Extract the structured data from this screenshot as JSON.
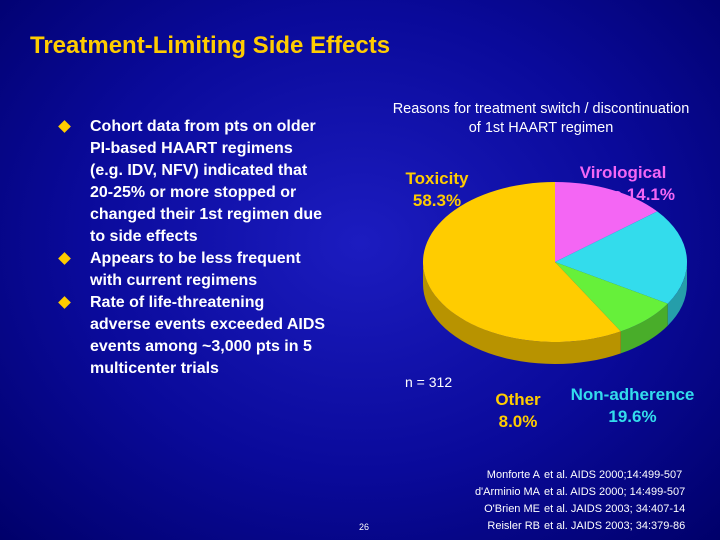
{
  "slide": {
    "title": "Treatment-Limiting Side Effects",
    "bullets": [
      "Cohort data from pts on older PI-based HAART regimens (e.g. IDV, NFV) indicated that 20-25% or more stopped or changed their 1st regimen due to side effects",
      "Appears to be less frequent with current regimens",
      "Rate of life-threatening adverse events exceeded AIDS events among ~3,000 pts in 5 multicenter trials"
    ],
    "references": {
      "authors": [
        "Monforte A",
        "d'Arminio MA",
        "O'Brien ME",
        "Reisler RB"
      ],
      "citations": [
        "et al. AIDS 2000;14:499-507",
        "et al. AIDS 2000; 14:499-507",
        "et al. JAIDS 2003; 34:407-14",
        "et al. JAIDS 2003; 34:379-86"
      ]
    },
    "page_number": "26"
  },
  "chart_data": {
    "type": "pie",
    "title": "Reasons for treatment switch / discontinuation of 1st HAART regimen",
    "categories": [
      "Virological failure",
      "Non-adherence",
      "Other",
      "Toxicity"
    ],
    "values": [
      14.1,
      19.6,
      8.0,
      58.3
    ],
    "value_labels": [
      "14.1%",
      "19.6%",
      "8.0%",
      "58.3%"
    ],
    "colors": [
      "#f466f4",
      "#33dcec",
      "#66f03a",
      "#ffcc00"
    ],
    "annotation": "n = 312"
  }
}
